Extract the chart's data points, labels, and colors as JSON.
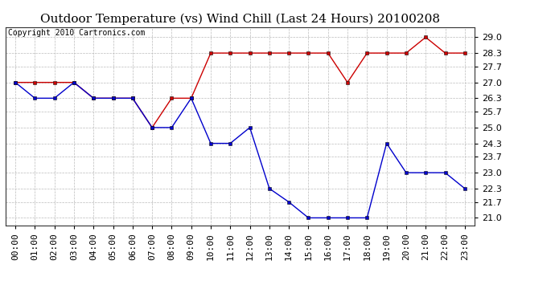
{
  "title": "Outdoor Temperature (vs) Wind Chill (Last 24 Hours) 20100208",
  "copyright": "Copyright 2010 Cartronics.com",
  "hours": [
    "00:00",
    "01:00",
    "02:00",
    "03:00",
    "04:00",
    "05:00",
    "06:00",
    "07:00",
    "08:00",
    "09:00",
    "10:00",
    "11:00",
    "12:00",
    "13:00",
    "14:00",
    "15:00",
    "16:00",
    "17:00",
    "18:00",
    "19:00",
    "20:00",
    "21:00",
    "22:00",
    "23:00"
  ],
  "temp": [
    27.0,
    27.0,
    27.0,
    27.0,
    26.3,
    26.3,
    26.3,
    25.0,
    26.3,
    26.3,
    28.3,
    28.3,
    28.3,
    28.3,
    28.3,
    28.3,
    28.3,
    27.0,
    28.3,
    28.3,
    28.3,
    29.0,
    28.3,
    28.3
  ],
  "windchill": [
    27.0,
    26.3,
    26.3,
    27.0,
    26.3,
    26.3,
    26.3,
    25.0,
    25.0,
    26.3,
    24.3,
    24.3,
    25.0,
    22.3,
    21.7,
    21.0,
    21.0,
    21.0,
    21.0,
    24.3,
    23.0,
    23.0,
    23.0,
    22.3
  ],
  "temp_color": "#cc0000",
  "windchill_color": "#0000cc",
  "ylim": [
    20.65,
    29.45
  ],
  "yticks": [
    21.0,
    21.7,
    22.3,
    23.0,
    23.7,
    24.3,
    25.0,
    25.7,
    26.3,
    27.0,
    27.7,
    28.3,
    29.0
  ],
  "bg_color": "#ffffff",
  "plot_bg_color": "#ffffff",
  "grid_color": "#bbbbbb",
  "title_fontsize": 11,
  "copyright_fontsize": 7,
  "tick_fontsize": 8
}
